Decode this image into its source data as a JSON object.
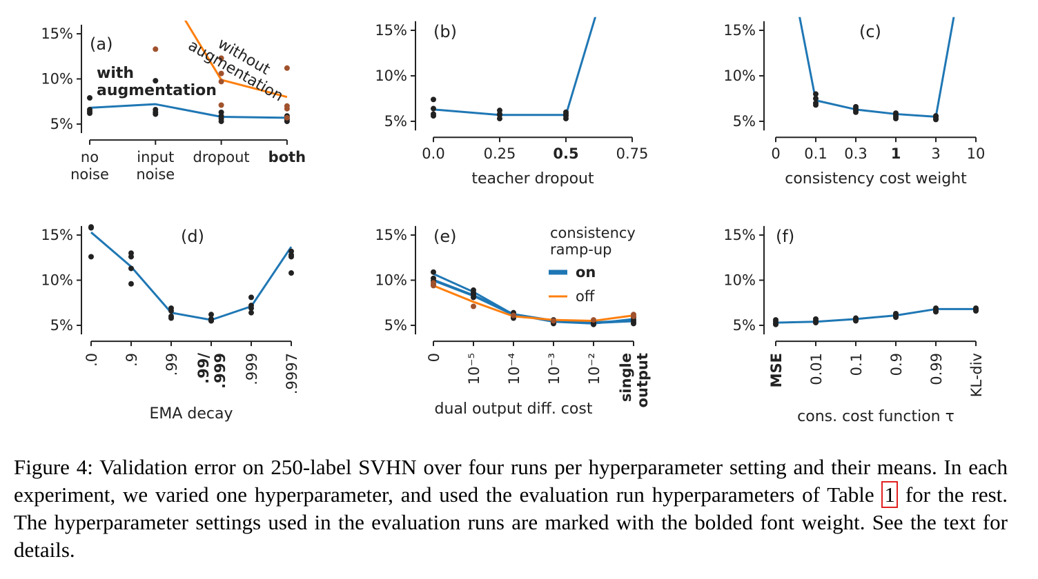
{
  "colors": {
    "on": "#1f77b4",
    "off": "#ff7f0e",
    "run_dot": "#222222",
    "off_dot": "#a0522d"
  },
  "caption": {
    "part1": "Figure 4:  Validation error on 250-label SVHN over four runs per hyperparameter setting and their means.  In each experiment, we varied one hyperparameter, and used the evaluation run hyperparameters of Table ",
    "ref": "1",
    "part2": " for the rest. The hyperparameter settings used in the evaluation runs are marked with the bolded font weight. See the text for details."
  },
  "chart_data": [
    {
      "type": "line",
      "panel_label": "(a)",
      "xlabel": "",
      "categories": [
        "no\nnoise",
        "input\nnoise",
        "dropout",
        "both"
      ],
      "bold_index": 3,
      "yticks": [
        "5%",
        "10%",
        "15%"
      ],
      "ylim": [
        4,
        16
      ],
      "annotations": [
        "with\naugmentation",
        "without\naugmentation"
      ],
      "series": [
        {
          "color": "on",
          "mean": [
            6.8,
            7.2,
            5.8,
            5.7
          ],
          "runs": [
            [
              7.9,
              6.6,
              6.4,
              6.2
            ],
            [
              9.8,
              6.6,
              6.3,
              6.1
            ],
            [
              6.3,
              5.9,
              5.6,
              5.3
            ],
            [
              5.9,
              5.7,
              5.5,
              5.3
            ]
          ]
        },
        {
          "color": "off",
          "mean": [
            null,
            16.5,
            9.9,
            8.0
          ],
          "runs": [
            [],
            [
              13.3
            ],
            [
              12.3,
              10.6,
              9.7,
              7.1
            ],
            [
              11.2,
              7.0,
              6.7,
              5.7
            ]
          ]
        }
      ]
    },
    {
      "type": "line",
      "panel_label": "(b)",
      "xlabel": "teacher dropout",
      "categories": [
        "0.0",
        "0.25",
        "0.5",
        "0.75"
      ],
      "bold_index": 2,
      "yticks": [
        "5%",
        "10%",
        "15%"
      ],
      "ylim": [
        4,
        16
      ],
      "series": [
        {
          "color": "on",
          "mean": [
            6.3,
            5.7,
            5.7,
            30
          ],
          "runs": [
            [
              7.4,
              6.4,
              5.8,
              5.6
            ],
            [
              6.2,
              5.8,
              5.7,
              5.3
            ],
            [
              6.0,
              5.8,
              5.6,
              5.3
            ],
            []
          ]
        }
      ]
    },
    {
      "type": "line",
      "panel_label": "(c)",
      "xlabel": "consistency cost weight",
      "categories": [
        "0",
        "0.1",
        "0.3",
        "1",
        "3",
        "10"
      ],
      "bold_index": 3,
      "yticks": [
        "5%",
        "10%",
        "15%"
      ],
      "ylim": [
        4,
        16
      ],
      "series": [
        {
          "color": "on",
          "mean": [
            30,
            7.3,
            6.3,
            5.8,
            5.5,
            30
          ],
          "runs": [
            [],
            [
              8.0,
              7.5,
              7.0,
              6.8
            ],
            [
              6.6,
              6.4,
              6.2,
              6.0
            ],
            [
              5.9,
              5.7,
              5.5,
              5.3
            ],
            [
              5.6,
              5.5,
              5.3,
              5.2
            ],
            []
          ]
        }
      ]
    },
    {
      "type": "line",
      "panel_label": "(d)",
      "xlabel": "EMA decay",
      "categories": [
        ".0",
        ".9",
        ".99",
        ".99/\n.999",
        ".999",
        ".9997"
      ],
      "bold_index": 3,
      "yticks": [
        "5%",
        "10%",
        "15%"
      ],
      "ylim": [
        4,
        16
      ],
      "series": [
        {
          "color": "on",
          "mean": [
            15.3,
            11.5,
            6.4,
            5.6,
            7.1,
            13.7
          ],
          "runs": [
            [
              15.9,
              15.8,
              12.6
            ],
            [
              13.0,
              12.6,
              11.3,
              9.6
            ],
            [
              6.9,
              6.6,
              6.0,
              5.8
            ],
            [
              6.2,
              5.7,
              5.5,
              5.5
            ],
            [
              8.1,
              7.2,
              6.9,
              6.4
            ],
            [
              13.2,
              12.8,
              12.6,
              10.8
            ]
          ]
        }
      ]
    },
    {
      "type": "line",
      "panel_label": "(e)",
      "xlabel": "dual output diff. cost",
      "categories": [
        "0",
        "10⁻⁵",
        "10⁻⁴",
        "10⁻³",
        "10⁻²",
        "single\noutput"
      ],
      "bold_index": 5,
      "yticks": [
        "5%",
        "10%",
        "15%"
      ],
      "ylim": [
        4,
        16
      ],
      "legend": {
        "title": "consistency\nramp-up",
        "entries": [
          "on",
          "off"
        ],
        "placement": "top-right"
      },
      "series": [
        {
          "name": "on",
          "color": "on",
          "mean": [
            10.0,
            8.3,
            6.2,
            5.5,
            5.3,
            5.5
          ],
          "runs": [
            [
              10.9,
              10.2,
              9.9,
              9.5
            ],
            [
              8.9,
              8.6,
              8.4,
              8.1
            ],
            [
              6.4,
              6.1,
              5.9,
              5.8
            ],
            [
              5.6,
              5.4,
              5.3,
              5.2
            ],
            [
              5.4,
              5.3,
              5.2,
              5.1
            ],
            [
              5.9,
              5.6,
              5.4,
              5.2
            ]
          ]
        },
        {
          "name": "off",
          "color": "off",
          "mean": [
            9.4,
            7.6,
            6.0,
            5.6,
            5.5,
            6.1
          ],
          "runs": [
            [
              9.7,
              9.4
            ],
            [
              7.1
            ],
            [
              6.1
            ],
            [
              5.5
            ],
            [
              5.6
            ],
            [
              6.2,
              6.0
            ]
          ]
        }
      ]
    },
    {
      "type": "line",
      "panel_label": "(f)",
      "xlabel": "cons. cost function τ",
      "categories": [
        "MSE",
        "0.01",
        "0.1",
        "0.9",
        "0.99",
        "KL-div"
      ],
      "bold_index": 0,
      "yticks": [
        "5%",
        "10%",
        "15%"
      ],
      "ylim": [
        4,
        16
      ],
      "series": [
        {
          "color": "on",
          "mean": [
            5.3,
            5.4,
            5.7,
            6.1,
            6.8,
            6.8
          ],
          "runs": [
            [
              5.6,
              5.4,
              5.2,
              5.1
            ],
            [
              5.7,
              5.5,
              5.4,
              5.3
            ],
            [
              5.8,
              5.7,
              5.6,
              5.5
            ],
            [
              6.3,
              6.2,
              6.0,
              5.9
            ],
            [
              6.9,
              6.8,
              6.6,
              6.5
            ],
            [
              6.9,
              6.8,
              6.7,
              6.6
            ]
          ]
        }
      ]
    }
  ]
}
